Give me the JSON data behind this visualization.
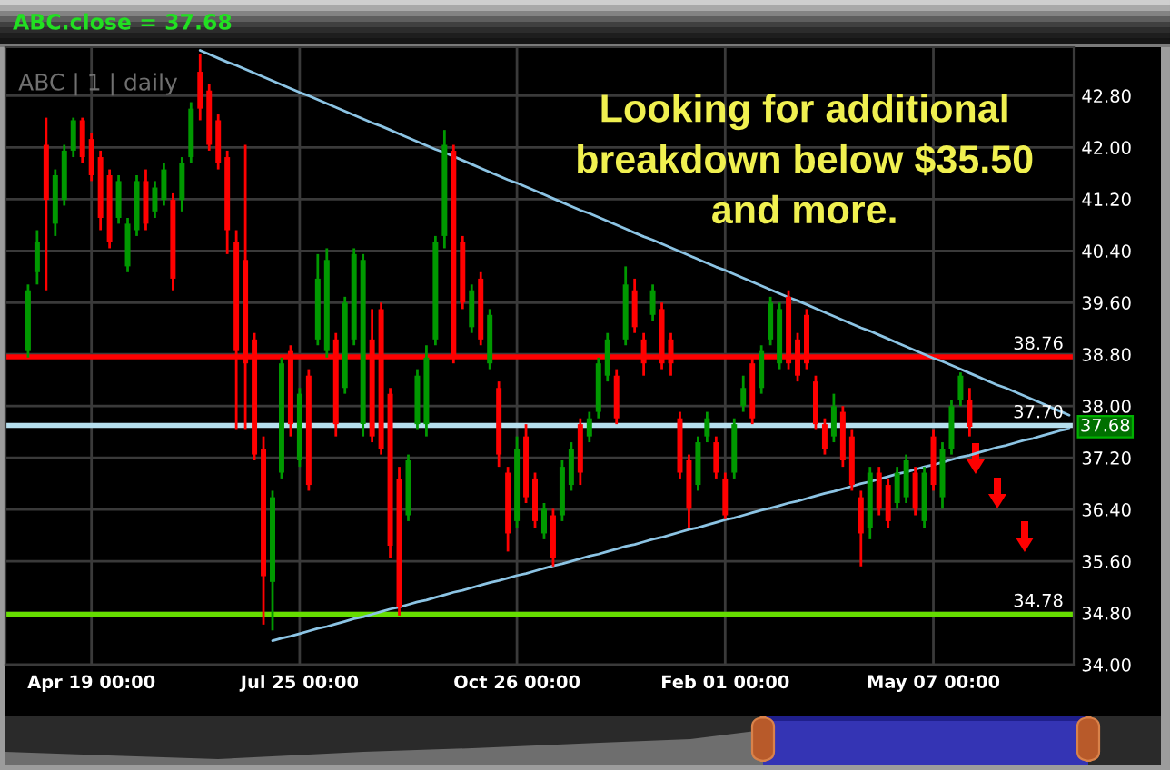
{
  "chart_data": {
    "type": "candlestick",
    "title": "ABC.close = 37.68",
    "subtitle": "ABC | 1 | daily",
    "categories": [
      null,
      null,
      null,
      null,
      null,
      null,
      null,
      null,
      null,
      "Apr 19 00:00",
      null,
      null,
      null,
      null,
      null,
      null,
      null,
      null,
      null,
      null,
      null,
      null,
      null,
      null,
      null,
      null,
      null,
      null,
      null,
      null,
      null,
      null,
      "Jul 25 00:00",
      null,
      null,
      null,
      null,
      null,
      null,
      null,
      null,
      null,
      null,
      null,
      null,
      null,
      null,
      null,
      null,
      null,
      null,
      null,
      null,
      null,
      null,
      null,
      "Oct 26 00:00",
      null,
      null,
      null,
      null,
      null,
      null,
      null,
      null,
      null,
      null,
      null,
      null,
      null,
      null,
      null,
      null,
      null,
      null,
      null,
      null,
      null,
      null,
      "Feb 01 00:00",
      null,
      null,
      null,
      null,
      null,
      null,
      null,
      null,
      null,
      null,
      null,
      null,
      null,
      null,
      null,
      null,
      null,
      null,
      null,
      null,
      null,
      null,
      "May 07 00:00",
      null,
      null,
      null,
      null,
      null,
      null,
      null,
      null,
      null,
      null,
      null,
      null,
      null,
      null,
      null
    ],
    "ohlc": [
      null,
      null,
      [
        38.85,
        39.88,
        38.75,
        39.79
      ],
      [
        40.07,
        40.72,
        39.88,
        40.54
      ],
      [
        42.04,
        42.46,
        39.79,
        41.19
      ],
      [
        40.82,
        41.66,
        40.63,
        41.57
      ],
      [
        41.19,
        42.04,
        41.1,
        41.95
      ],
      [
        41.95,
        42.46,
        41.85,
        42.42
      ],
      [
        42.42,
        42.46,
        41.76,
        41.85
      ],
      [
        42.13,
        42.23,
        41.48,
        41.57
      ],
      [
        41.85,
        41.95,
        40.72,
        40.91
      ],
      [
        41.57,
        41.66,
        40.44,
        40.54
      ],
      [
        40.91,
        41.57,
        40.82,
        41.48
      ],
      [
        40.16,
        40.91,
        40.07,
        40.82
      ],
      [
        40.72,
        41.57,
        40.63,
        41.48
      ],
      [
        41.48,
        41.66,
        40.72,
        40.82
      ],
      [
        41.01,
        41.48,
        40.91,
        41.38
      ],
      [
        41.19,
        41.76,
        41.1,
        41.66
      ],
      [
        41.19,
        41.29,
        39.79,
        39.97
      ],
      [
        41.19,
        41.85,
        41.01,
        41.76
      ],
      [
        41.85,
        42.7,
        41.76,
        42.6
      ],
      [
        43.17,
        43.45,
        42.42,
        42.6
      ],
      [
        42.88,
        42.98,
        41.95,
        42.04
      ],
      [
        42.42,
        42.51,
        41.66,
        41.76
      ],
      [
        41.85,
        41.95,
        40.35,
        40.72
      ],
      [
        40.54,
        40.72,
        37.63,
        38.85
      ],
      [
        40.26,
        42.04,
        37.63,
        38.66
      ],
      [
        39.03,
        39.13,
        37.16,
        37.25
      ],
      [
        37.34,
        37.53,
        34.62,
        35.37
      ],
      [
        35.28,
        36.69,
        34.53,
        36.59
      ],
      [
        36.97,
        38.75,
        36.88,
        38.66
      ],
      [
        38.85,
        38.94,
        37.53,
        37.72
      ],
      [
        37.16,
        38.28,
        37.06,
        38.19
      ],
      [
        38.47,
        38.57,
        36.69,
        36.78
      ],
      [
        39.03,
        40.35,
        38.94,
        39.97
      ],
      [
        38.85,
        40.44,
        38.75,
        40.26
      ],
      [
        39.03,
        39.13,
        37.53,
        37.72
      ],
      [
        38.28,
        39.69,
        38.19,
        39.6
      ],
      [
        39.03,
        40.44,
        38.94,
        40.35
      ],
      [
        37.72,
        40.35,
        37.53,
        40.26
      ],
      [
        39.03,
        39.5,
        37.44,
        37.53
      ],
      [
        39.5,
        39.6,
        37.25,
        37.34
      ],
      [
        38.19,
        38.28,
        35.65,
        35.84
      ],
      [
        36.88,
        37.06,
        34.76,
        34.9
      ],
      [
        36.31,
        37.25,
        36.22,
        37.16
      ],
      [
        37.72,
        38.57,
        37.63,
        38.47
      ],
      [
        37.72,
        38.94,
        37.53,
        38.75
      ],
      [
        39.03,
        40.63,
        38.94,
        40.54
      ],
      [
        40.63,
        42.27,
        40.44,
        42.04
      ],
      [
        41.95,
        42.04,
        38.66,
        38.75
      ],
      [
        40.54,
        40.63,
        39.5,
        39.6
      ],
      [
        39.22,
        39.88,
        39.13,
        39.79
      ],
      [
        39.97,
        40.07,
        38.94,
        39.03
      ],
      [
        38.66,
        39.5,
        38.57,
        39.41
      ],
      [
        38.28,
        38.38,
        37.06,
        37.25
      ],
      [
        36.97,
        37.06,
        35.75,
        36.03
      ],
      [
        36.22,
        37.53,
        36.12,
        37.34
      ],
      [
        37.53,
        37.72,
        36.5,
        36.59
      ],
      [
        36.88,
        36.97,
        36.12,
        36.22
      ],
      [
        36.03,
        36.5,
        35.94,
        36.41
      ],
      [
        36.31,
        36.41,
        35.52,
        35.65
      ],
      [
        36.31,
        37.16,
        36.22,
        37.06
      ],
      [
        36.78,
        37.44,
        36.69,
        37.34
      ],
      [
        37.72,
        37.81,
        36.78,
        36.97
      ],
      [
        37.53,
        37.91,
        37.44,
        37.81
      ],
      [
        37.91,
        38.75,
        37.81,
        38.66
      ],
      [
        38.47,
        39.13,
        38.38,
        39.03
      ],
      [
        38.47,
        38.57,
        37.72,
        37.81
      ],
      [
        39.03,
        40.16,
        38.94,
        39.88
      ],
      [
        39.79,
        39.97,
        39.13,
        39.22
      ],
      [
        39.03,
        39.13,
        38.47,
        38.66
      ],
      [
        39.41,
        39.88,
        39.32,
        39.79
      ],
      [
        39.5,
        39.6,
        38.57,
        38.66
      ],
      [
        39.03,
        39.13,
        38.47,
        38.66
      ],
      [
        37.81,
        37.91,
        36.88,
        36.97
      ],
      [
        37.16,
        37.25,
        36.12,
        36.41
      ],
      [
        36.78,
        37.53,
        36.69,
        37.44
      ],
      [
        37.53,
        37.91,
        37.44,
        37.81
      ],
      [
        37.44,
        37.53,
        36.88,
        36.97
      ],
      [
        36.88,
        36.97,
        36.25,
        36.31
      ],
      [
        36.97,
        37.81,
        36.88,
        37.72
      ],
      [
        38.0,
        38.47,
        37.91,
        38.28
      ],
      [
        38.66,
        38.75,
        37.72,
        37.81
      ],
      [
        38.28,
        38.94,
        38.19,
        38.85
      ],
      [
        39.03,
        39.69,
        38.94,
        39.6
      ],
      [
        38.66,
        39.6,
        38.57,
        39.5
      ],
      [
        39.69,
        39.79,
        38.57,
        38.66
      ],
      [
        39.03,
        39.13,
        38.38,
        38.47
      ],
      [
        39.41,
        39.5,
        38.57,
        38.66
      ],
      [
        38.38,
        38.47,
        37.63,
        37.72
      ],
      [
        37.72,
        37.81,
        37.25,
        37.34
      ],
      [
        37.53,
        38.19,
        37.44,
        38.0
      ],
      [
        37.91,
        38.0,
        37.06,
        37.16
      ],
      [
        37.53,
        37.63,
        36.69,
        36.78
      ],
      [
        36.59,
        36.69,
        35.52,
        36.03
      ],
      [
        36.12,
        37.06,
        35.94,
        36.97
      ],
      [
        36.97,
        37.06,
        36.31,
        36.41
      ],
      [
        36.78,
        36.88,
        36.12,
        36.22
      ],
      [
        36.5,
        37.06,
        36.41,
        36.97
      ],
      [
        36.59,
        37.25,
        36.5,
        37.16
      ],
      [
        36.97,
        37.06,
        36.31,
        36.41
      ],
      [
        36.22,
        37.06,
        36.12,
        36.97
      ],
      [
        37.53,
        37.63,
        36.69,
        36.78
      ],
      [
        36.59,
        37.44,
        36.41,
        37.34
      ],
      [
        37.34,
        38.1,
        37.25,
        38.0
      ],
      [
        38.1,
        38.52,
        38.0,
        38.47
      ],
      [
        38.1,
        38.28,
        37.53,
        37.68
      ],
      null,
      null,
      null,
      null,
      null,
      null,
      null,
      null,
      null,
      null,
      null
    ],
    "colors": [
      null,
      null,
      "#009900",
      "#009900",
      "#ff0000",
      "#009900",
      "#009900",
      "#009900",
      "#ff0000",
      "#ff0000",
      "#ff0000",
      "#ff0000",
      "#009900",
      "#009900",
      "#009900",
      "#ff0000",
      "#009900",
      "#009900",
      "#ff0000",
      "#009900",
      "#009900",
      "#ff0000",
      "#ff0000",
      "#ff0000",
      "#ff0000",
      "#ff0000",
      "#ff0000",
      "#ff0000",
      "#ff0000",
      "#009900",
      "#009900",
      "#ff0000",
      "#009900",
      "#ff0000",
      "#009900",
      "#009900",
      "#ff0000",
      "#009900",
      "#009900",
      "#009900",
      "#ff0000",
      "#ff0000",
      "#ff0000",
      "#ff0000",
      "#009900",
      "#009900",
      "#009900",
      "#009900",
      "#009900",
      "#ff0000",
      "#ff0000",
      "#009900",
      "#ff0000",
      "#009900",
      "#ff0000",
      "#ff0000",
      "#009900",
      "#ff0000",
      "#ff0000",
      "#009900",
      "#ff0000",
      "#009900",
      "#009900",
      "#ff0000",
      "#009900",
      "#009900",
      "#009900",
      "#ff0000",
      "#009900",
      "#ff0000",
      "#ff0000",
      "#009900",
      "#ff0000",
      "#ff0000",
      "#ff0000",
      "#ff0000",
      "#009900",
      "#009900",
      "#ff0000",
      "#ff0000",
      "#009900",
      "#009900",
      "#ff0000",
      "#009900",
      "#009900",
      "#009900",
      "#ff0000",
      "#ff0000",
      "#ff0000",
      "#ff0000",
      "#ff0000",
      "#009900",
      "#ff0000",
      "#ff0000",
      "#ff0000",
      "#009900",
      "#ff0000",
      "#ff0000",
      "#009900",
      "#009900",
      "#ff0000",
      "#009900",
      "#ff0000",
      "#009900",
      "#009900",
      "#009900",
      "#ff0000",
      null,
      null,
      null,
      null,
      null,
      null,
      null,
      null,
      null,
      null,
      null
    ],
    "series": [
      {
        "type": "line",
        "color": "#8cc4e4",
        "values": [
          null,
          null,
          null,
          null,
          null,
          null,
          null,
          null,
          null,
          null,
          null,
          null,
          null,
          null,
          null,
          null,
          null,
          null,
          null,
          null,
          null,
          43.5,
          43.44,
          43.38,
          43.32,
          43.27,
          43.21,
          43.15,
          43.09,
          43.03,
          42.97,
          42.91,
          42.85,
          42.8,
          42.74,
          42.68,
          42.62,
          42.56,
          42.5,
          42.44,
          42.38,
          42.33,
          42.27,
          42.21,
          42.15,
          42.09,
          42.03,
          41.97,
          41.92,
          41.86,
          41.8,
          41.74,
          41.68,
          41.62,
          41.56,
          41.5,
          41.45,
          41.39,
          41.33,
          41.27,
          41.21,
          41.15,
          41.09,
          41.03,
          40.98,
          40.92,
          40.86,
          40.8,
          40.74,
          40.68,
          40.62,
          40.57,
          40.51,
          40.45,
          40.39,
          40.33,
          40.27,
          40.21,
          40.15,
          40.1,
          40.04,
          39.98,
          39.92,
          39.86,
          39.8,
          39.74,
          39.68,
          39.63,
          39.57,
          39.51,
          39.45,
          39.39,
          39.33,
          39.27,
          39.21,
          39.16,
          39.1,
          39.04,
          38.98,
          38.92,
          38.86,
          38.8,
          38.74,
          38.69,
          38.63,
          38.57,
          38.51,
          38.45,
          38.39,
          38.33,
          38.28,
          38.22,
          38.16,
          38.1,
          38.04,
          37.98,
          37.92,
          37.86
        ]
      },
      {
        "type": "line",
        "color": "#8cc4e4",
        "values": [
          null,
          null,
          null,
          null,
          null,
          null,
          null,
          null,
          null,
          null,
          null,
          null,
          null,
          null,
          null,
          null,
          null,
          null,
          null,
          null,
          null,
          null,
          null,
          null,
          null,
          null,
          null,
          null,
          null,
          34.37,
          34.41,
          34.44,
          34.48,
          34.52,
          34.56,
          34.59,
          34.63,
          34.67,
          34.71,
          34.74,
          34.78,
          34.82,
          34.86,
          34.89,
          34.93,
          34.97,
          35.0,
          35.04,
          35.08,
          35.12,
          35.15,
          35.19,
          35.23,
          35.27,
          35.3,
          35.34,
          35.38,
          35.41,
          35.45,
          35.49,
          35.53,
          35.56,
          35.6,
          35.64,
          35.68,
          35.71,
          35.75,
          35.79,
          35.83,
          35.86,
          35.9,
          35.94,
          35.97,
          36.01,
          36.05,
          36.09,
          36.12,
          36.16,
          36.2,
          36.24,
          36.27,
          36.31,
          36.35,
          36.39,
          36.42,
          36.46,
          36.5,
          36.53,
          36.57,
          36.61,
          36.65,
          36.68,
          36.72,
          36.76,
          36.8,
          36.83,
          36.87,
          36.91,
          36.95,
          36.98,
          37.02,
          37.06,
          37.09,
          37.13,
          37.17,
          37.21,
          37.24,
          37.28,
          37.32,
          37.36,
          37.39,
          37.43,
          37.47,
          37.5,
          37.54,
          37.58,
          37.62,
          37.65
        ]
      }
    ],
    "ylim": [
      34.0,
      43.55
    ],
    "yticks": [
      {
        "value": 34.0,
        "label": "34.00"
      },
      {
        "value": 34.8,
        "label": "34.80"
      },
      {
        "value": 35.6,
        "label": "35.60"
      },
      {
        "value": 36.4,
        "label": "36.40"
      },
      {
        "value": 37.2,
        "label": "37.20"
      },
      {
        "value": 38.0,
        "label": "38.00"
      },
      {
        "value": 38.8,
        "label": "38.80"
      },
      {
        "value": 39.6,
        "label": "39.60"
      },
      {
        "value": 40.4,
        "label": "40.40"
      },
      {
        "value": 41.2,
        "label": "41.20"
      },
      {
        "value": 42.0,
        "label": "42.00"
      },
      {
        "value": 42.8,
        "label": "42.80"
      }
    ],
    "ref_lines": [
      {
        "axis": "y",
        "value": 38.76,
        "label": "38.76",
        "color": "#ff0000"
      },
      {
        "axis": "y",
        "value": 37.7,
        "label": "37.70",
        "color": "#b6dfee"
      },
      {
        "axis": "y",
        "value": 34.78,
        "label": "34.78",
        "color": "#66dd00"
      }
    ],
    "annotations": [
      "Looking for additional\nbreakdown below $35.50\nand more.",
      {
        "text": "37.68",
        "y": 37.68
      }
    ],
    "grid": true
  }
}
